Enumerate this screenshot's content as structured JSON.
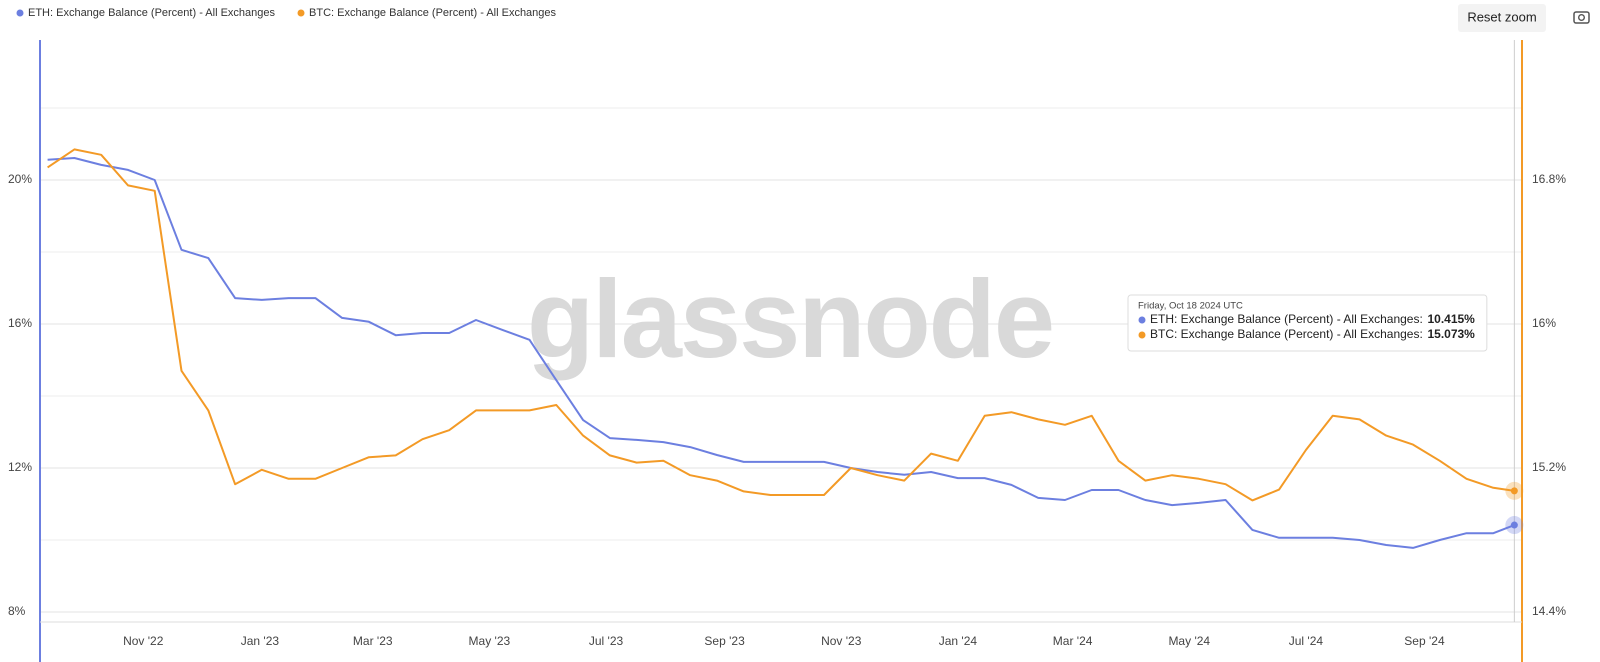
{
  "chart_data": {
    "type": "line",
    "x": [
      "2022-09-12",
      "2022-09-26",
      "2022-10-10",
      "2022-10-24",
      "2022-11-07",
      "2022-11-21",
      "2022-12-05",
      "2022-12-19",
      "2023-01-02",
      "2023-01-16",
      "2023-01-30",
      "2023-02-13",
      "2023-02-27",
      "2023-03-13",
      "2023-03-27",
      "2023-04-10",
      "2023-04-24",
      "2023-05-08",
      "2023-05-22",
      "2023-06-05",
      "2023-06-19",
      "2023-07-03",
      "2023-07-17",
      "2023-07-31",
      "2023-08-14",
      "2023-08-28",
      "2023-09-11",
      "2023-09-25",
      "2023-10-09",
      "2023-10-23",
      "2023-11-06",
      "2023-11-20",
      "2023-12-04",
      "2023-12-18",
      "2024-01-01",
      "2024-01-15",
      "2024-01-29",
      "2024-02-12",
      "2024-02-26",
      "2024-03-11",
      "2024-03-25",
      "2024-04-08",
      "2024-04-22",
      "2024-05-06",
      "2024-05-20",
      "2024-06-03",
      "2024-06-17",
      "2024-07-01",
      "2024-07-15",
      "2024-07-29",
      "2024-08-12",
      "2024-08-26",
      "2024-09-09",
      "2024-09-23",
      "2024-10-07",
      "2024-10-18"
    ],
    "series": [
      {
        "name": "ETH: Exchange Balance (Percent) - All Exchanges",
        "color": "#6c7fe0",
        "axis": "y",
        "values": [
          20.56,
          20.61,
          20.42,
          20.28,
          20.0,
          18.06,
          17.83,
          16.72,
          16.67,
          16.72,
          16.72,
          16.17,
          16.06,
          15.69,
          15.75,
          15.75,
          16.11,
          15.83,
          15.56,
          14.44,
          13.33,
          12.83,
          12.78,
          12.72,
          12.58,
          12.36,
          12.17,
          12.17,
          12.17,
          12.17,
          12.0,
          11.89,
          11.81,
          11.89,
          11.72,
          11.72,
          11.53,
          11.17,
          11.11,
          11.39,
          11.39,
          11.11,
          10.97,
          11.03,
          11.11,
          10.28,
          10.06,
          10.06,
          10.06,
          10.0,
          9.86,
          9.78,
          10.0,
          10.19,
          10.19,
          10.415
        ]
      },
      {
        "name": "BTC: Exchange Balance (Percent) - All Exchanges",
        "color": "#f39a26",
        "axis": "y2",
        "values": [
          16.87,
          16.97,
          16.94,
          16.77,
          16.74,
          15.74,
          15.52,
          15.11,
          15.19,
          15.14,
          15.14,
          15.2,
          15.26,
          15.27,
          15.36,
          15.41,
          15.52,
          15.52,
          15.52,
          15.55,
          15.38,
          15.27,
          15.23,
          15.24,
          15.16,
          15.13,
          15.07,
          15.05,
          15.05,
          15.05,
          15.2,
          15.16,
          15.13,
          15.28,
          15.24,
          15.49,
          15.51,
          15.47,
          15.44,
          15.49,
          15.24,
          15.13,
          15.16,
          15.14,
          15.11,
          15.02,
          15.08,
          15.3,
          15.49,
          15.47,
          15.38,
          15.33,
          15.24,
          15.14,
          15.09,
          15.073
        ]
      }
    ],
    "xlim": [
      "2022-09-08",
      "2024-10-22"
    ],
    "xticks": [
      {
        "value": "2022-11-01",
        "label": "Nov '22"
      },
      {
        "value": "2023-01-01",
        "label": "Jan '23"
      },
      {
        "value": "2023-03-01",
        "label": "Mar '23"
      },
      {
        "value": "2023-05-01",
        "label": "May '23"
      },
      {
        "value": "2023-07-01",
        "label": "Jul '23"
      },
      {
        "value": "2023-09-01",
        "label": "Sep '23"
      },
      {
        "value": "2023-11-01",
        "label": "Nov '23"
      },
      {
        "value": "2024-01-01",
        "label": "Jan '24"
      },
      {
        "value": "2024-03-01",
        "label": "Mar '24"
      },
      {
        "value": "2024-05-01",
        "label": "May '24"
      },
      {
        "value": "2024-07-01",
        "label": "Jul '24"
      },
      {
        "value": "2024-09-01",
        "label": "Sep '24"
      }
    ],
    "ylim": [
      8,
      24
    ],
    "yticks": [
      {
        "value": 8,
        "label": "8%"
      },
      {
        "value": 12,
        "label": "12%"
      },
      {
        "value": 16,
        "label": "16%"
      },
      {
        "value": 20,
        "label": "20%"
      }
    ],
    "minor_grid": [
      10,
      14,
      18,
      22
    ],
    "y2lim": [
      14.4,
      17.6
    ],
    "y2ticks": [
      {
        "value": 14.4,
        "label": "14.4%"
      },
      {
        "value": 15.2,
        "label": "15.2%"
      },
      {
        "value": 16,
        "label": "16%"
      },
      {
        "value": 16.8,
        "label": "16.8%"
      }
    ],
    "grid": true,
    "watermark": "glassnode",
    "tooltip": {
      "title": "Friday, Oct 18 2024 UTC",
      "entries": [
        {
          "value": 10.415,
          "label": "10.415%"
        },
        {
          "value": 15.073,
          "label": "15.073%"
        }
      ]
    },
    "buttons": {
      "reset": "Reset zoom"
    }
  }
}
